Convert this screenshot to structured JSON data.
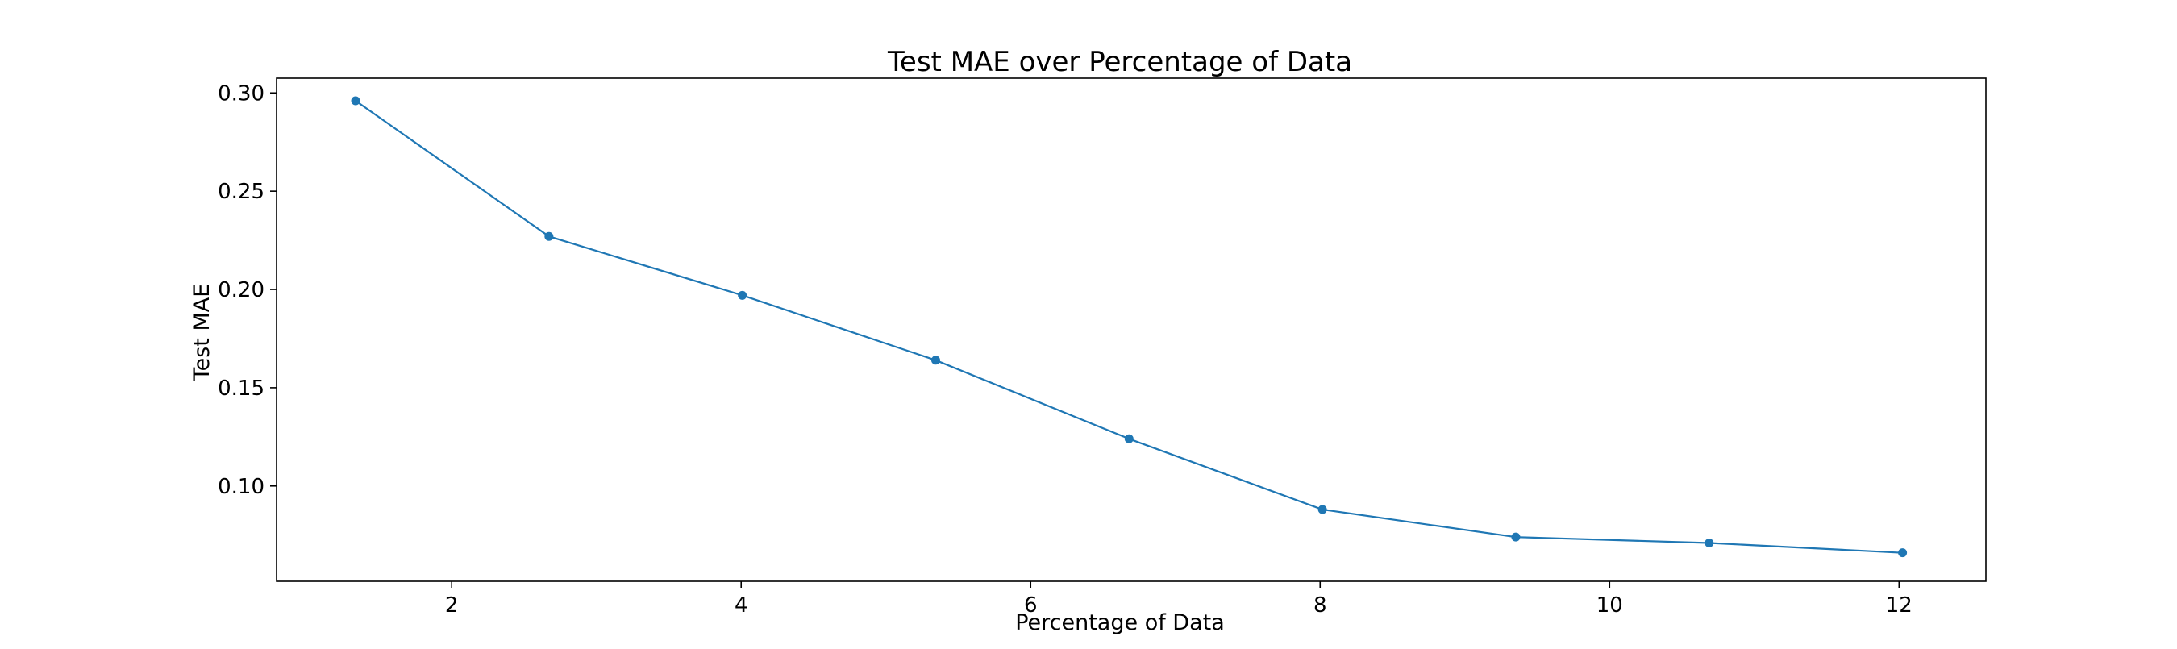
{
  "chart_data": {
    "type": "line",
    "title": "Test MAE over Percentage of Data",
    "xlabel": "Percentage of Data",
    "ylabel": "Test MAE",
    "xlim": [
      0.79,
      12.6
    ],
    "ylim": [
      0.0515,
      0.3075
    ],
    "xticks": [
      2,
      4,
      6,
      8,
      10,
      12
    ],
    "xtick_labels": [
      "2",
      "4",
      "6",
      "8",
      "10",
      "12"
    ],
    "yticks": [
      0.1,
      0.15,
      0.2,
      0.25,
      0.3
    ],
    "ytick_labels": [
      "0.10",
      "0.15",
      "0.20",
      "0.25",
      "0.30"
    ],
    "grid": false,
    "legend": "none",
    "series": [
      {
        "color": "#1f77b4",
        "marker": "circle",
        "x": [
          1.336,
          2.672,
          4.008,
          5.344,
          6.68,
          8.016,
          9.352,
          10.688,
          12.024
        ],
        "y": [
          0.296,
          0.227,
          0.197,
          0.164,
          0.124,
          0.088,
          0.074,
          0.071,
          0.066
        ]
      }
    ]
  }
}
